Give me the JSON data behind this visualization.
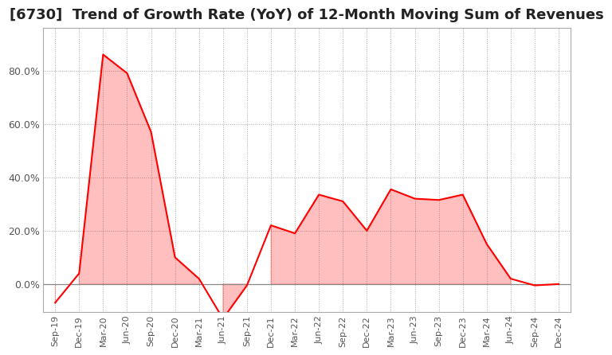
{
  "title": "[6730]  Trend of Growth Rate (YoY) of 12-Month Moving Sum of Revenues",
  "line_color": "#FF0000",
  "fill_color": "#FF0000",
  "fill_alpha": 0.25,
  "background_color": "#FFFFFF",
  "grid_color": "#AAAAAA",
  "x_labels": [
    "Sep-19",
    "Dec-19",
    "Mar-20",
    "Jun-20",
    "Sep-20",
    "Dec-20",
    "Mar-21",
    "Jun-21",
    "Sep-21",
    "Dec-21",
    "Mar-22",
    "Jun-22",
    "Sep-22",
    "Dec-22",
    "Mar-23",
    "Jun-23",
    "Sep-23",
    "Dec-23",
    "Mar-24",
    "Jun-24",
    "Sep-24",
    "Dec-24"
  ],
  "y_values": [
    -0.07,
    0.04,
    0.86,
    0.79,
    0.57,
    0.1,
    0.02,
    -0.13,
    -0.005,
    0.22,
    0.19,
    0.335,
    0.31,
    0.2,
    0.355,
    0.32,
    0.315,
    0.335,
    0.15,
    0.02,
    -0.005,
    0.0
  ],
  "ylim": [
    -0.105,
    0.96
  ],
  "yticks": [
    0.0,
    0.2,
    0.4,
    0.6,
    0.8
  ],
  "title_fontsize": 13,
  "tick_label_color": "#555555",
  "zero_line_color": "#888888"
}
